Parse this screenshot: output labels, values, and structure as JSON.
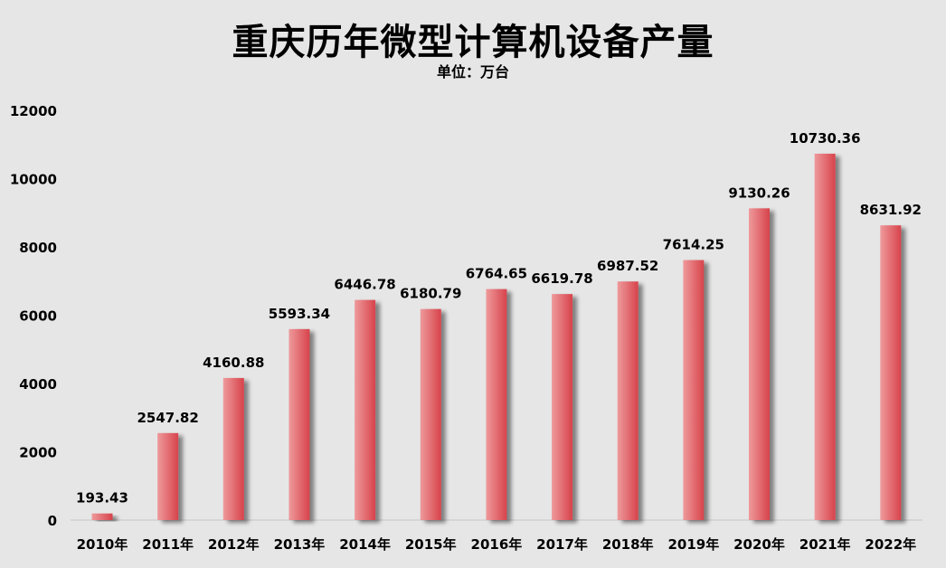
{
  "chart_data": {
    "type": "bar",
    "title": "重庆历年微型计算机设备产量",
    "subtitle": "单位：万台",
    "xlabel": "",
    "ylabel": "",
    "ylim": [
      0,
      12000
    ],
    "yticks": [
      0,
      2000,
      4000,
      6000,
      8000,
      10000,
      12000
    ],
    "grid": false,
    "categories": [
      "2010年",
      "2011年",
      "2012年",
      "2013年",
      "2014年",
      "2015年",
      "2016年",
      "2017年",
      "2018年",
      "2019年",
      "2020年",
      "2021年",
      "2022年"
    ],
    "values": [
      193.43,
      2547.82,
      4160.88,
      5593.34,
      6446.78,
      6180.79,
      6764.65,
      6619.78,
      6987.52,
      7614.25,
      9130.26,
      10730.36,
      8631.92
    ],
    "data_labels": [
      "193.43",
      "2547.82",
      "4160.88",
      "5593.34",
      "6446.78",
      "6180.79",
      "6764.65",
      "6619.78",
      "6987.52",
      "7614.25",
      "9130.26",
      "10730.36",
      "8631.92"
    ],
    "colors": {
      "bar_light": "#ee9a9c",
      "bar_dark": "#d7434b",
      "background": "#e6e6e6"
    }
  }
}
